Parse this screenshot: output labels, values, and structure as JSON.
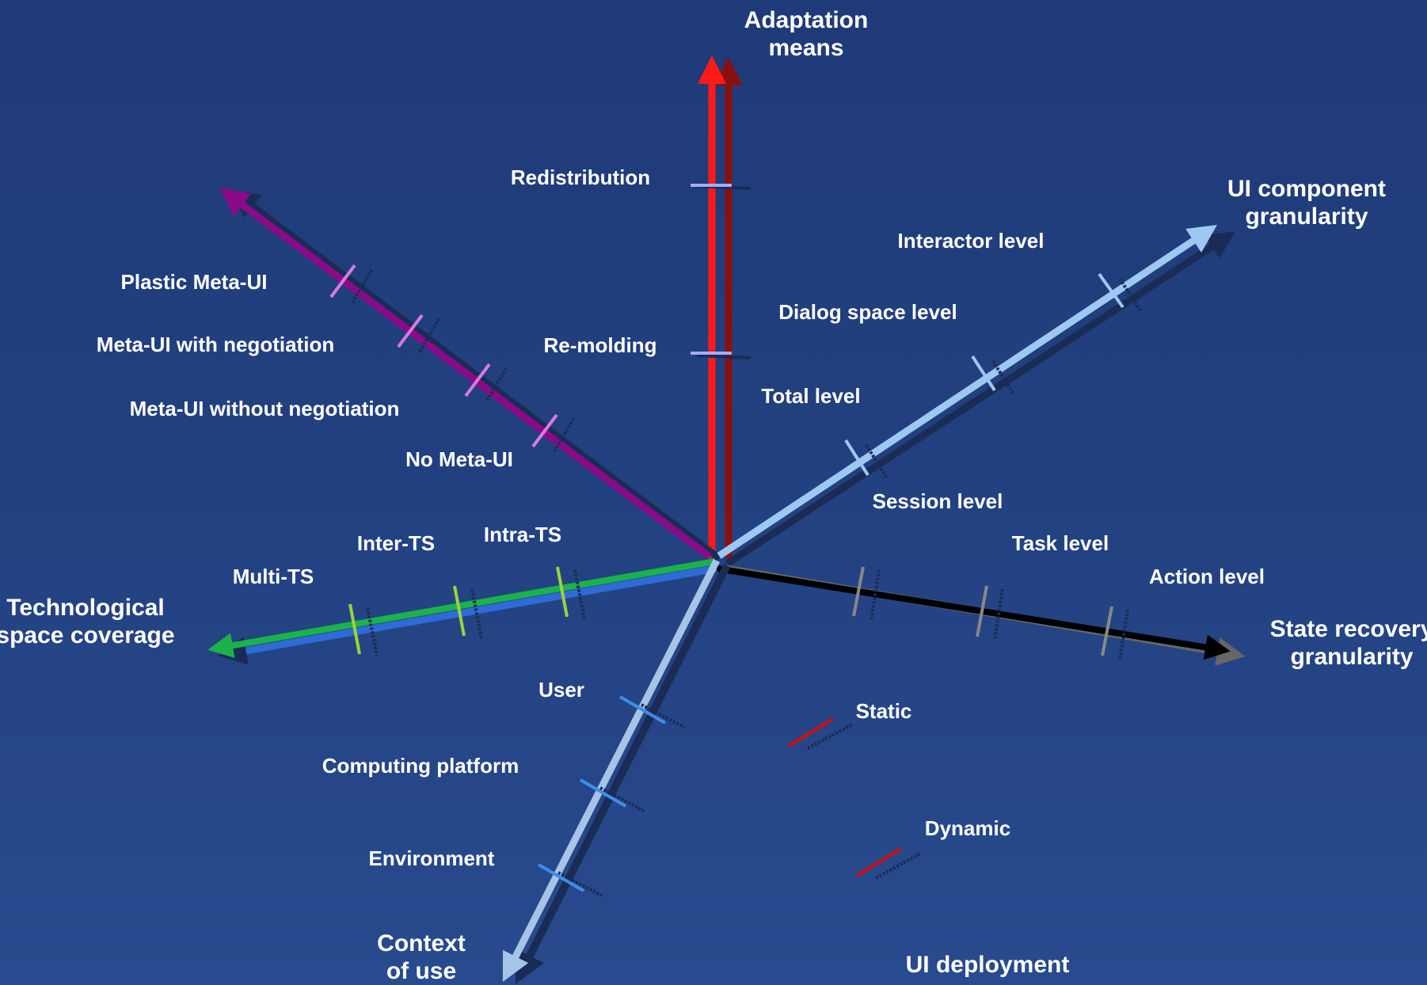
{
  "axes": {
    "adaptation_means": {
      "title": [
        "Adaptation",
        "means"
      ],
      "values": [
        "Redistribution",
        "Re-molding"
      ],
      "color": "#ff1a1a"
    },
    "ui_component_granularity": {
      "title": [
        "UI component",
        "granularity"
      ],
      "values": [
        "Interactor level",
        "Dialog space level",
        "Total level"
      ],
      "color": "#9cc8f2"
    },
    "state_recovery_granularity": {
      "title": [
        "State recovery",
        "granularity"
      ],
      "values": [
        "Session level",
        "Task level",
        "Action level"
      ],
      "color": "#000000"
    },
    "meta_ui": {
      "values": [
        "Plastic Meta-UI",
        "Meta-UI with negotiation",
        "Meta-UI without negotiation",
        "No Meta-UI"
      ],
      "color": "#8a0a8a"
    },
    "technological_space_coverage": {
      "title": [
        "Technological",
        "space coverage"
      ],
      "values": [
        "Inter-TS",
        "Intra-TS",
        "Multi-TS"
      ],
      "color": "#19b34a"
    },
    "context_of_use": {
      "title": [
        "Context",
        "of use"
      ],
      "values": [
        "User",
        "Computing platform",
        "Environment"
      ],
      "color": "#a6c4e6"
    },
    "ui_deployment": {
      "title": "UI deployment",
      "values": [
        "Static",
        "Dynamic"
      ],
      "color": "#cc1111"
    }
  }
}
